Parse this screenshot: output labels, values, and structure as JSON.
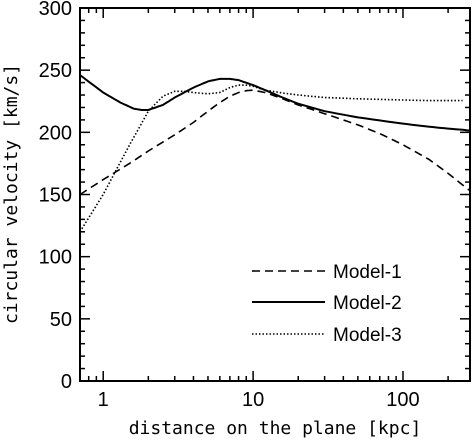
{
  "chart_data": {
    "type": "line",
    "title": "",
    "xlabel": "distance on the plane [kpc]",
    "ylabel": "circular velocity [km/s]",
    "xscale": "log",
    "xlim": [
      0.7,
      280
    ],
    "ylim": [
      0,
      300
    ],
    "x_ticks": [
      1,
      10,
      100
    ],
    "x_tick_labels": [
      "1",
      "10",
      "100"
    ],
    "y_ticks": [
      0,
      50,
      100,
      150,
      200,
      250,
      300
    ],
    "y_tick_labels": [
      "0",
      "50",
      "100",
      "150",
      "200",
      "250",
      "300"
    ],
    "grid": false,
    "legend_position": "bottom-right",
    "series": [
      {
        "name": "Model-1",
        "style": "dashed",
        "x": [
          0.7,
          1.0,
          1.5,
          2.0,
          3.0,
          4.0,
          5.0,
          6.0,
          7.0,
          8.0,
          9.0,
          10.0,
          12.0,
          15.0,
          20.0,
          30.0,
          50.0,
          70.0,
          100.0,
          150.0,
          200.0,
          280.0
        ],
        "y": [
          150,
          162,
          175,
          185,
          198,
          208,
          217,
          224,
          229,
          232,
          233.5,
          234,
          232,
          228,
          222,
          215,
          206,
          199,
          190,
          178,
          167,
          153
        ]
      },
      {
        "name": "Model-2",
        "style": "solid",
        "x": [
          0.7,
          1.0,
          1.3,
          1.6,
          1.8,
          2.0,
          2.5,
          3.0,
          4.0,
          5.0,
          6.0,
          7.0,
          8.0,
          10.0,
          12.0,
          15.0,
          20.0,
          30.0,
          50.0,
          100.0,
          150.0,
          200.0,
          280.0
        ],
        "y": [
          246,
          232,
          224,
          219,
          218,
          218,
          222,
          228,
          236,
          241,
          243,
          243,
          242,
          238,
          234,
          229,
          223,
          217,
          212,
          207,
          204.5,
          203,
          201.5
        ]
      },
      {
        "name": "Model-3",
        "style": "dotted",
        "x": [
          0.7,
          1.0,
          1.5,
          2.0,
          2.5,
          3.0,
          3.5,
          4.0,
          5.0,
          6.0,
          7.0,
          8.0,
          9.0,
          10.0,
          12.0,
          15.0,
          20.0,
          30.0,
          50.0,
          100.0,
          150.0,
          200.0,
          250.0
        ],
        "y": [
          120,
          150,
          190,
          217,
          229,
          233,
          233,
          232,
          231,
          232,
          236,
          238,
          238,
          237,
          234,
          232,
          230,
          228,
          227,
          226,
          225.5,
          225.5,
          225.5
        ]
      }
    ]
  }
}
